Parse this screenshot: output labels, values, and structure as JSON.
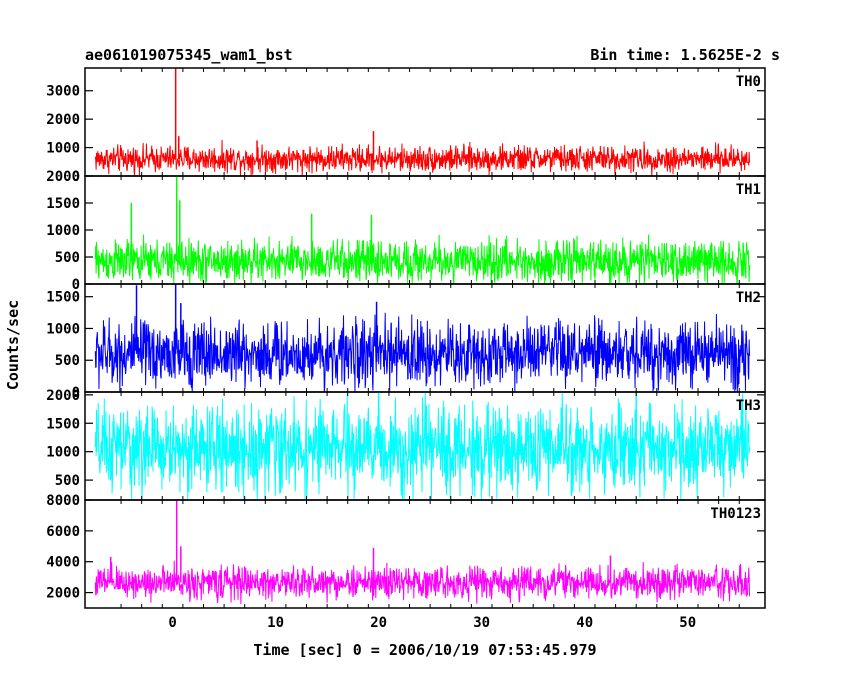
{
  "header": {
    "title": "ae061019075345_wam1_bst",
    "bin_time": "Bin time: 1.5625E-2 s"
  },
  "chart_data": {
    "type": "line",
    "ylabel": "Counts/sec",
    "xlabel": "Time [sec] 0 = 2006/10/19 07:53:45.979",
    "xlim": [
      -8.5,
      57.5
    ],
    "x_ticks": [
      0,
      10,
      20,
      30,
      40,
      50
    ],
    "x_tick_labels": [
      "0",
      "10",
      "20",
      "30",
      "40",
      "50"
    ],
    "time_range": [
      -7.5,
      56
    ],
    "panels": [
      {
        "label": "TH0",
        "color": "#ff0000",
        "ylim": [
          0,
          3800
        ],
        "y_ticks": [
          0,
          1000,
          2000,
          3000
        ],
        "mean": 600,
        "spread": 230,
        "peaks": [
          {
            "t": 0.3,
            "v": 3800
          },
          {
            "t": 0.6,
            "v": 1400
          },
          {
            "t": 19.5,
            "v": 1580
          },
          {
            "t": 8.2,
            "v": 1250
          }
        ]
      },
      {
        "label": "TH1",
        "color": "#00ff00",
        "ylim": [
          0,
          2000
        ],
        "y_ticks": [
          0,
          500,
          1000,
          1500,
          2000
        ],
        "mean": 420,
        "spread": 190,
        "peaks": [
          {
            "t": 0.4,
            "v": 2000
          },
          {
            "t": 0.7,
            "v": 1550
          },
          {
            "t": -4,
            "v": 1500
          },
          {
            "t": 13.5,
            "v": 1300
          },
          {
            "t": 19.3,
            "v": 1280
          }
        ]
      },
      {
        "label": "TH2",
        "color": "#0000ff",
        "ylim": [
          0,
          1700
        ],
        "y_ticks": [
          0,
          500,
          1000,
          1500
        ],
        "mean": 600,
        "spread": 260,
        "peaks": [
          {
            "t": -3.5,
            "v": 1680
          },
          {
            "t": 0.3,
            "v": 1700
          },
          {
            "t": 0.8,
            "v": 1400
          },
          {
            "t": 19.8,
            "v": 1420
          }
        ]
      },
      {
        "label": "TH3",
        "color": "#00ffff",
        "ylim": [
          150,
          2050
        ],
        "y_ticks": [
          500,
          1000,
          1500,
          2000
        ],
        "mean": 1050,
        "spread": 380,
        "peaks": [
          {
            "t": 20,
            "v": 2050
          },
          {
            "t": 45,
            "v": 2040
          }
        ]
      },
      {
        "label": "TH0123",
        "color": "#ff00ff",
        "ylim": [
          1000,
          8000
        ],
        "y_ticks": [
          2000,
          4000,
          6000,
          8000
        ],
        "mean": 2650,
        "spread": 520,
        "peaks": [
          {
            "t": 0.4,
            "v": 8000
          },
          {
            "t": 0.8,
            "v": 5000
          },
          {
            "t": 19.5,
            "v": 4900
          },
          {
            "t": -6,
            "v": 4300
          },
          {
            "t": 42.5,
            "v": 4400
          }
        ]
      }
    ]
  }
}
